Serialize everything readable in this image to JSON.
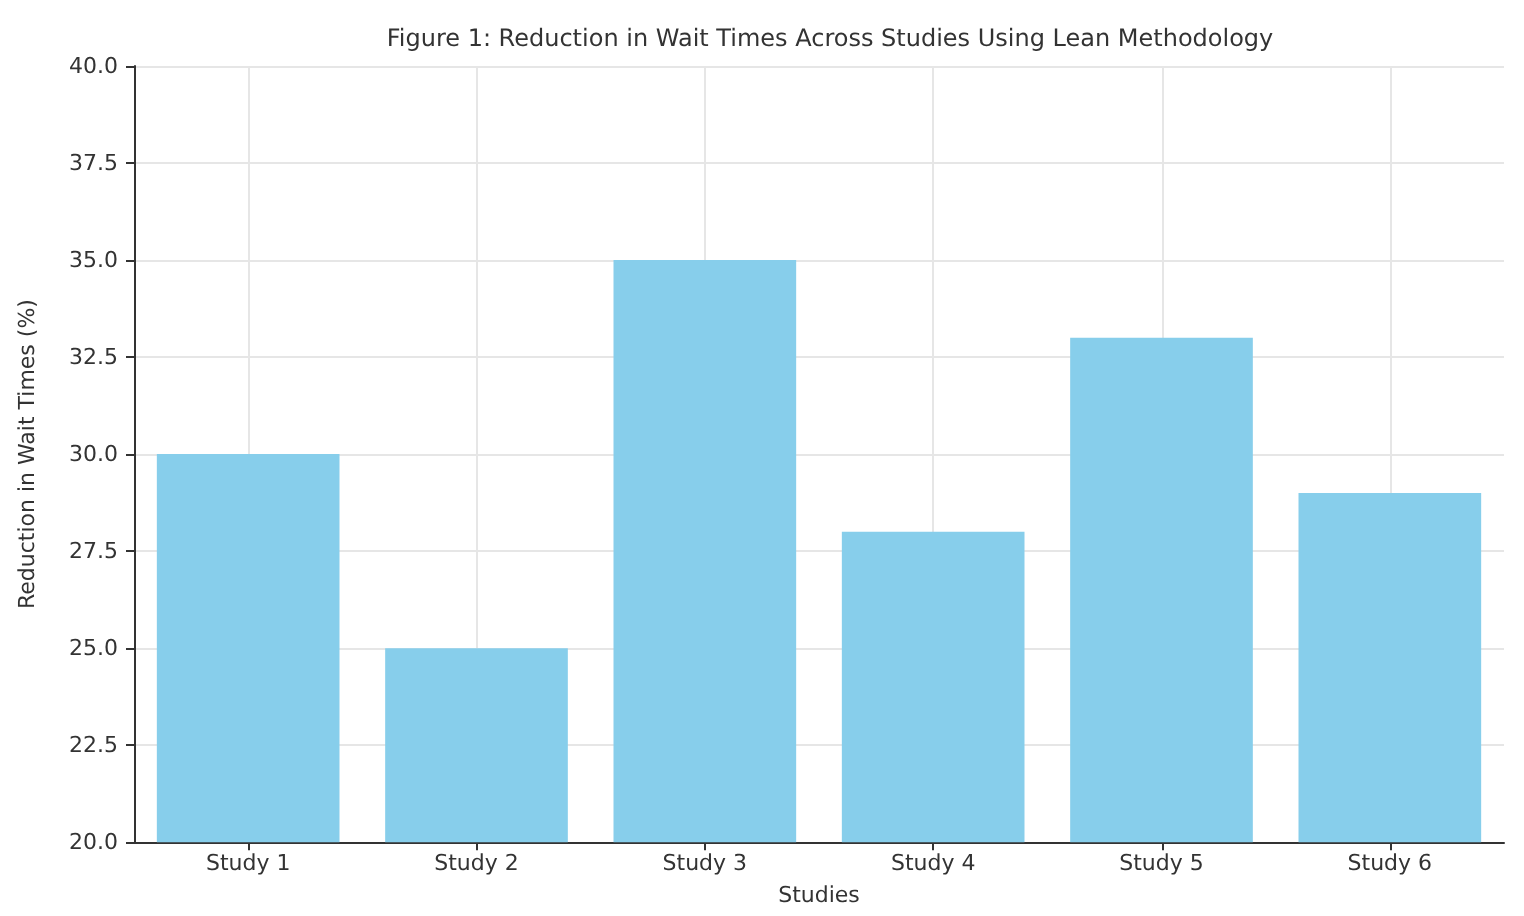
{
  "chart_data": {
    "type": "bar",
    "title": "Figure 1: Reduction in Wait Times Across Studies Using Lean Methodology",
    "xlabel": "Studies",
    "ylabel": "Reduction in Wait Times (%)",
    "categories": [
      "Study 1",
      "Study 2",
      "Study 3",
      "Study 4",
      "Study 5",
      "Study 6"
    ],
    "values": [
      30,
      25,
      35,
      28,
      33,
      29
    ],
    "color": "#87ceeb",
    "ylim": [
      20,
      40
    ],
    "yticks": [
      {
        "value": 20,
        "label": "20.0"
      },
      {
        "value": 22.5,
        "label": "22.5"
      },
      {
        "value": 25,
        "label": "25.0"
      },
      {
        "value": 27.5,
        "label": "27.5"
      },
      {
        "value": 30,
        "label": "30.0"
      },
      {
        "value": 32.5,
        "label": "32.5"
      },
      {
        "value": 35,
        "label": "35.0"
      },
      {
        "value": 37.5,
        "label": "37.5"
      },
      {
        "value": 40,
        "label": "40.0"
      }
    ],
    "grid": true
  }
}
